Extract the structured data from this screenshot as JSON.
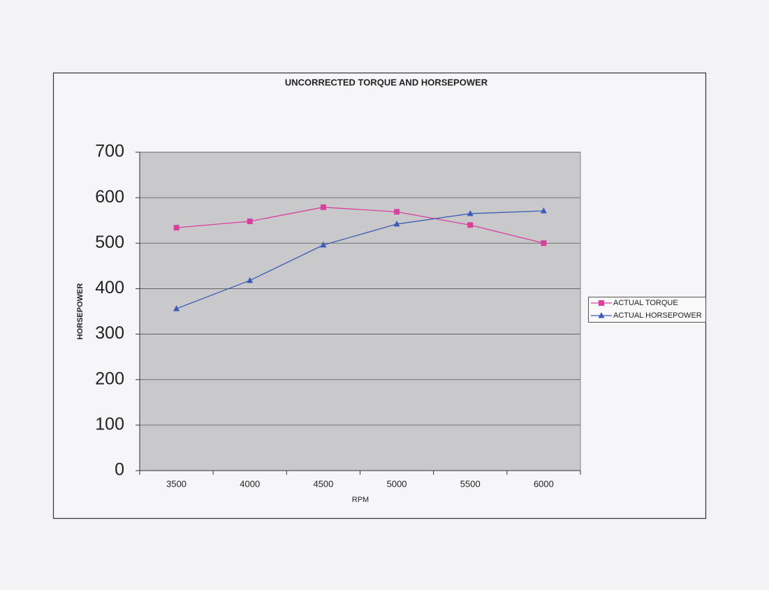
{
  "chart_data": {
    "type": "line",
    "title": "UNCORRECTED TORQUE AND HORSEPOWER",
    "x_label": "RPM",
    "y_label": "HORSEPOWER",
    "categories": [
      "3500",
      "4000",
      "4500",
      "5000",
      "5500",
      "6000"
    ],
    "series": [
      {
        "name": "ACTUAL TORQUE",
        "color": "#d9409e",
        "marker": "square",
        "values": [
          534,
          548,
          579,
          569,
          540,
          500
        ]
      },
      {
        "name": "ACTUAL HORSEPOWER",
        "color": "#3b5bb5",
        "marker": "triangle",
        "values": [
          356,
          418,
          496,
          542,
          565,
          571
        ]
      }
    ],
    "ylim": [
      0,
      700
    ],
    "yticks": [
      0,
      100,
      200,
      300,
      400,
      500,
      600,
      700
    ],
    "grid": true,
    "legend": "right"
  }
}
